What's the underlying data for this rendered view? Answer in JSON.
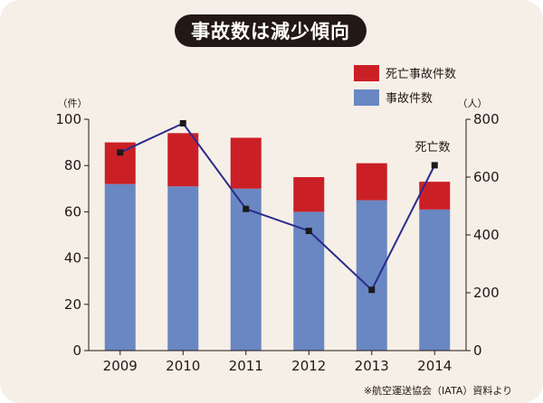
{
  "title": "事故数は減少傾向",
  "source_note": "※航空運送協会（IATA）資料より",
  "colors": {
    "background": "#f6efe7",
    "title_bg": "#231815",
    "accidents": "#6987c3",
    "fatal_accidents": "#cb1f26",
    "deaths_line": "#2b2b8c",
    "marker": "#1a1a1a",
    "axis": "#231815"
  },
  "chart_data": {
    "type": "bar",
    "stacked": true,
    "categories": [
      "2009",
      "2010",
      "2011",
      "2012",
      "2013",
      "2014"
    ],
    "series": [
      {
        "name": "事故件数",
        "axis": "left",
        "values": [
          72,
          71,
          70,
          60,
          65,
          61
        ]
      },
      {
        "name": "死亡事故件数",
        "axis": "left",
        "values": [
          18,
          23,
          22,
          15,
          16,
          12
        ]
      }
    ],
    "line_series": {
      "annotation": "死亡数",
      "axis": "right",
      "type": "line",
      "values": [
        685,
        786,
        490,
        414,
        210,
        641
      ]
    },
    "y_left": {
      "unit": "（件）",
      "min": 0,
      "max": 100,
      "ticks": [
        0,
        20,
        40,
        60,
        80,
        100
      ]
    },
    "y_right": {
      "unit": "（人）",
      "min": 0,
      "max": 800,
      "ticks": [
        0,
        200,
        400,
        600,
        800
      ]
    },
    "legend": [
      "死亡事故件数",
      "事故件数"
    ],
    "legend_position": "top-right",
    "grid": false
  }
}
